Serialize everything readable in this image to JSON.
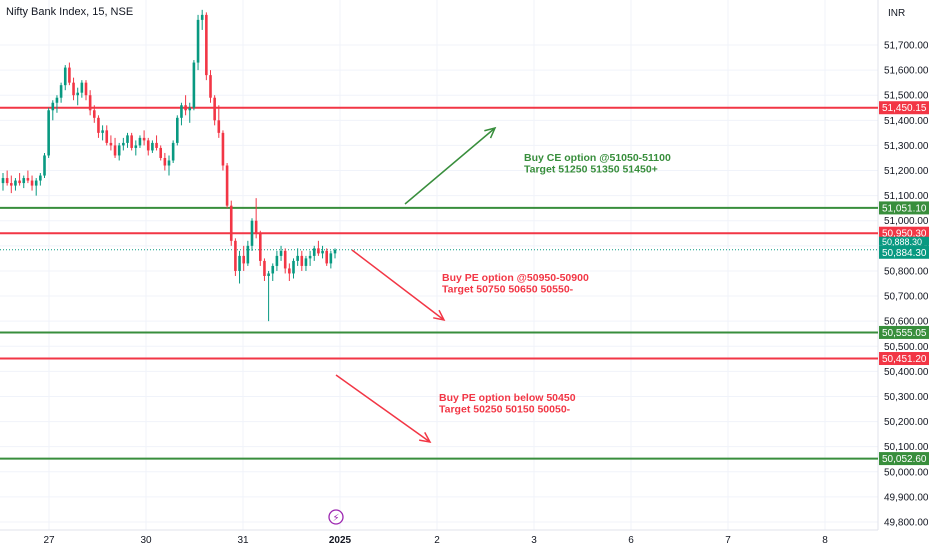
{
  "header": {
    "title": "Nifty Bank Index, 15, NSE",
    "currency": "INR"
  },
  "colors": {
    "up": "#089981",
    "down": "#f23645",
    "green_line": "#388e3c",
    "red_line": "#f23645",
    "grid": "#f0f3fa",
    "axis_text": "#131722"
  },
  "chart_data": {
    "type": "candlestick",
    "title": "",
    "y_ticks": [
      49800,
      49900,
      50000,
      50100,
      50200,
      50300,
      50400,
      50500,
      50600,
      50700,
      50800,
      50900,
      51000,
      51100,
      51200,
      51300,
      51400,
      51500,
      51600,
      51700
    ],
    "y_tick_labels": [
      "49,800.00",
      "49,900.00",
      "50,000.00",
      "50,100.00",
      "50,200.00",
      "50,300.00",
      "50,400.00",
      "50,500.00",
      "50,600.00",
      "50,700.00",
      "50,800.00",
      "50,900.00",
      "51,000.00",
      "51,100.00",
      "51,200.00",
      "51,300.00",
      "51,400.00",
      "51,500.00",
      "51,600.00",
      "51,700.00"
    ],
    "ylim": [
      49780,
      51840
    ],
    "x_ticks": [
      "27",
      "30",
      "31",
      "2025",
      "2",
      "3",
      "6",
      "7",
      "8"
    ],
    "levels": [
      {
        "label": "51,450.15",
        "value": 51450.15,
        "color": "red"
      },
      {
        "label": "51,051.10",
        "value": 51051.1,
        "color": "green"
      },
      {
        "label": "50,950.30",
        "value": 50950.3,
        "color": "red"
      },
      {
        "label": "50,555.05",
        "value": 50555.05,
        "color": "green"
      },
      {
        "label": "50,451.20",
        "value": 50451.2,
        "color": "red"
      },
      {
        "label": "50,052.60",
        "value": 50052.6,
        "color": "green"
      }
    ],
    "last_price": {
      "label": "50,884.30",
      "value": 50884.3
    },
    "hidden_price_label": "50,888.30",
    "annotations": [
      {
        "lines": [
          "Buy CE option @51050-51100",
          "Target 51250 51350 51450+"
        ],
        "color": "green"
      },
      {
        "lines": [
          "Buy PE option @50950-50900",
          "Target 50750 50650 50550-"
        ],
        "color": "red"
      },
      {
        "lines": [
          "Buy PE option below 50450",
          "Target 50250 50150 50050-"
        ],
        "color": "red"
      }
    ],
    "candles": [
      [
        51150,
        51190,
        51120,
        51170
      ],
      [
        51170,
        51200,
        51140,
        51150
      ],
      [
        51150,
        51180,
        51110,
        51140
      ],
      [
        51140,
        51170,
        51120,
        51160
      ],
      [
        51160,
        51190,
        51140,
        51150
      ],
      [
        51150,
        51180,
        51130,
        51170
      ],
      [
        51170,
        51200,
        51150,
        51160
      ],
      [
        51160,
        51180,
        51120,
        51140
      ],
      [
        51140,
        51170,
        51100,
        51160
      ],
      [
        51160,
        51190,
        51140,
        51180
      ],
      [
        51180,
        51270,
        51170,
        51260
      ],
      [
        51260,
        51450,
        51250,
        51440
      ],
      [
        51440,
        51480,
        51400,
        51470
      ],
      [
        51470,
        51500,
        51430,
        51490
      ],
      [
        51490,
        51550,
        51470,
        51540
      ],
      [
        51540,
        51620,
        51520,
        51610
      ],
      [
        51610,
        51630,
        51540,
        51550
      ],
      [
        51550,
        51570,
        51480,
        51500
      ],
      [
        51500,
        51530,
        51460,
        51510
      ],
      [
        51510,
        51560,
        51490,
        51550
      ],
      [
        51550,
        51560,
        51480,
        51500
      ],
      [
        51500,
        51520,
        51420,
        51440
      ],
      [
        51440,
        51460,
        51390,
        51410
      ],
      [
        51410,
        51420,
        51330,
        51350
      ],
      [
        51350,
        51380,
        51320,
        51360
      ],
      [
        51360,
        51380,
        51300,
        51310
      ],
      [
        51310,
        51340,
        51280,
        51300
      ],
      [
        51300,
        51330,
        51250,
        51260
      ],
      [
        51260,
        51310,
        51240,
        51300
      ],
      [
        51300,
        51330,
        51280,
        51310
      ],
      [
        51310,
        51350,
        51290,
        51340
      ],
      [
        51340,
        51350,
        51280,
        51290
      ],
      [
        51290,
        51320,
        51260,
        51300
      ],
      [
        51300,
        51340,
        51290,
        51330
      ],
      [
        51330,
        51360,
        51300,
        51320
      ],
      [
        51320,
        51330,
        51260,
        51280
      ],
      [
        51280,
        51320,
        51270,
        51310
      ],
      [
        51310,
        51340,
        51280,
        51290
      ],
      [
        51290,
        51300,
        51240,
        51250
      ],
      [
        51250,
        51270,
        51200,
        51220
      ],
      [
        51220,
        51260,
        51180,
        51240
      ],
      [
        51240,
        51320,
        51230,
        51310
      ],
      [
        51310,
        51420,
        51300,
        51410
      ],
      [
        51410,
        51470,
        51380,
        51460
      ],
      [
        51460,
        51500,
        51420,
        51440
      ],
      [
        51440,
        51470,
        51390,
        51450
      ],
      [
        51450,
        51640,
        51440,
        51630
      ],
      [
        51630,
        51820,
        51600,
        51800
      ],
      [
        51800,
        51840,
        51760,
        51820
      ],
      [
        51820,
        51830,
        51560,
        51580
      ],
      [
        51580,
        51600,
        51470,
        51490
      ],
      [
        51490,
        51500,
        51380,
        51400
      ],
      [
        51400,
        51460,
        51330,
        51350
      ],
      [
        51350,
        51360,
        51200,
        51220
      ],
      [
        51220,
        51230,
        51050,
        51060
      ],
      [
        51060,
        51080,
        50900,
        50920
      ],
      [
        50920,
        50930,
        50780,
        50800
      ],
      [
        50800,
        50880,
        50750,
        50860
      ],
      [
        50860,
        50900,
        50800,
        50830
      ],
      [
        50830,
        50920,
        50820,
        50900
      ],
      [
        50900,
        51010,
        50880,
        51000
      ],
      [
        51000,
        51090,
        50930,
        50950
      ],
      [
        50950,
        50960,
        50820,
        50840
      ],
      [
        50840,
        50850,
        50760,
        50780
      ],
      [
        50780,
        50800,
        50600,
        50790
      ],
      [
        50790,
        50830,
        50760,
        50820
      ],
      [
        50820,
        50880,
        50800,
        50860
      ],
      [
        50860,
        50900,
        50840,
        50880
      ],
      [
        50880,
        50890,
        50790,
        50810
      ],
      [
        50810,
        50830,
        50760,
        50790
      ],
      [
        50790,
        50850,
        50770,
        50840
      ],
      [
        50840,
        50890,
        50820,
        50860
      ],
      [
        50860,
        50880,
        50800,
        50820
      ],
      [
        50820,
        50860,
        50800,
        50850
      ],
      [
        50850,
        50880,
        50820,
        50860
      ],
      [
        50860,
        50900,
        50840,
        50890
      ],
      [
        50890,
        50920,
        50860,
        50870
      ],
      [
        50870,
        50900,
        50850,
        50880
      ],
      [
        50880,
        50890,
        50820,
        50830
      ],
      [
        50830,
        50880,
        50810,
        50870
      ],
      [
        50870,
        50890,
        50850,
        50884
      ]
    ]
  }
}
